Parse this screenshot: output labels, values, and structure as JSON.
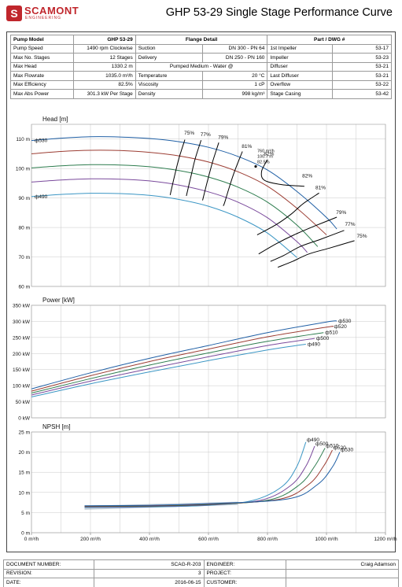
{
  "header": {
    "logo_text": "SCAMONT",
    "logo_sub": "ENGINEERING",
    "title": "GHP 53-29 Single Stage Performance Curve"
  },
  "spec_table": {
    "col1": [
      {
        "label": "Pump Model",
        "value": "GHP 53-29"
      },
      {
        "label": "Pump Speed",
        "value": "1490 rpm Clockwise"
      },
      {
        "label": "Max No. Stages",
        "value": "12 Stages"
      },
      {
        "label": "Max Head",
        "value": "1330.2 m"
      },
      {
        "label": "Max Flowrate",
        "value": "1035.0 m³/h"
      },
      {
        "label": "Max Efficiency",
        "value": "82.5%"
      },
      {
        "label": "Max Abs Power",
        "value": "301.3 kW Per Stage"
      }
    ],
    "flange_header": "Flange Detail",
    "flange": [
      {
        "label": "Suction",
        "value": "DN 300 - PN 64"
      },
      {
        "label": "Delivery",
        "value": "DN 250 - PN 160"
      }
    ],
    "medium_header": "Pumped Medium - Water @",
    "medium": [
      {
        "label": "Temperature",
        "value": "20 °C"
      },
      {
        "label": "Viscosity",
        "value": "1 cP"
      },
      {
        "label": "Density",
        "value": "998 kg/m³"
      }
    ],
    "parts_header": "Part / DWG #",
    "parts": [
      {
        "label": "1st Impeller",
        "value": "53-17"
      },
      {
        "label": "Impeller",
        "value": "53-23"
      },
      {
        "label": "Diffuser",
        "value": "53-21"
      },
      {
        "label": "Last Diffuser",
        "value": "53-21"
      },
      {
        "label": "Overflow",
        "value": "53-22"
      },
      {
        "label": "Stage Casing",
        "value": "53-42"
      }
    ]
  },
  "colors": {
    "d530": "#1f5fa5",
    "d520": "#9c3d33",
    "d510": "#2e7d4f",
    "d500": "#7a4a9c",
    "d490": "#3b96c4",
    "grid": "#c8c8c8",
    "npsh_fill": "#8aa0b4"
  },
  "chart_data": [
    {
      "type": "line",
      "title": "Head [m]",
      "ylim": [
        60,
        115
      ],
      "xlim": [
        0,
        1200
      ],
      "yticks": [
        "110 m",
        "100 m",
        "90 m",
        "80 m",
        "70 m",
        "60 m"
      ],
      "ytick_values": [
        110,
        100,
        90,
        80,
        70,
        60
      ],
      "series": [
        {
          "name": "ф530",
          "color_key": "d530",
          "x": [
            0,
            100,
            200,
            300,
            400,
            500,
            600,
            700,
            800,
            900,
            1000,
            1035
          ],
          "y": [
            109.5,
            110.3,
            110.8,
            110.7,
            110.2,
            109.1,
            107.2,
            104.1,
            99.5,
            92.2,
            83.4,
            79.5
          ]
        },
        {
          "name": "",
          "color_key": "d520",
          "x": [
            0,
            100,
            200,
            300,
            400,
            500,
            600,
            700,
            800,
            900,
            1000
          ],
          "y": [
            105.0,
            105.8,
            106.2,
            106.1,
            105.5,
            104.3,
            102.2,
            98.9,
            94.0,
            86.5,
            77.5
          ]
        },
        {
          "name": "",
          "color_key": "d510",
          "x": [
            0,
            100,
            200,
            300,
            400,
            500,
            600,
            700,
            800,
            900,
            970
          ],
          "y": [
            100.2,
            100.9,
            101.3,
            101.2,
            100.6,
            99.3,
            97.1,
            93.7,
            88.6,
            80.8,
            73.5
          ]
        },
        {
          "name": "",
          "color_key": "d500",
          "x": [
            0,
            100,
            200,
            300,
            400,
            500,
            600,
            700,
            800,
            900,
            935
          ],
          "y": [
            95.4,
            96.1,
            96.5,
            96.4,
            95.8,
            94.4,
            92.1,
            88.6,
            83.3,
            75.2,
            71.5
          ]
        },
        {
          "name": "ф490",
          "color_key": "d490",
          "x": [
            0,
            100,
            200,
            300,
            400,
            500,
            600,
            700,
            800,
            900
          ],
          "y": [
            90.5,
            91.2,
            91.6,
            91.5,
            90.9,
            89.5,
            87.2,
            83.5,
            78.1,
            69.8
          ]
        }
      ],
      "efficiency_labels": [
        {
          "text": "75%",
          "x": 535,
          "y": 111.5
        },
        {
          "text": "77%",
          "x": 590,
          "y": 111.0
        },
        {
          "text": "79%",
          "x": 650,
          "y": 110.0
        },
        {
          "text": "81%",
          "x": 730,
          "y": 107.0
        },
        {
          "text": "82%",
          "x": 805,
          "y": 104.5
        },
        {
          "text": "82%",
          "x": 935,
          "y": 97.0
        },
        {
          "text": "81%",
          "x": 980,
          "y": 93.0
        },
        {
          "text": "79%",
          "x": 1050,
          "y": 84.5
        },
        {
          "text": "77%",
          "x": 1080,
          "y": 80.5
        },
        {
          "text": "75%",
          "x": 1120,
          "y": 76.5
        }
      ],
      "efficiency_contours": [
        {
          "x": [
            520,
            500,
            485,
            470
          ],
          "y": [
            109.8,
            103.5,
            97.5,
            91.0
          ]
        },
        {
          "x": [
            575,
            555,
            540,
            525
          ],
          "y": [
            109.6,
            103.3,
            97.1,
            90.7
          ]
        },
        {
          "x": [
            635,
            615,
            597,
            580
          ],
          "y": [
            108.8,
            102.6,
            96.0,
            89.2
          ]
        },
        {
          "x": [
            715,
            690,
            670,
            655,
            650
          ],
          "y": [
            105.8,
            99.5,
            93.5,
            88.5,
            87.3
          ]
        },
        {
          "x": [
            800,
            780,
            790,
            850,
            925
          ],
          "y": [
            103.0,
            99.0,
            96.0,
            94.5,
            94.0
          ]
        },
        {
          "x": [
            975,
            920,
            880,
            830,
            765
          ],
          "y": [
            91.7,
            88.0,
            84.5,
            81.0,
            77.5
          ]
        },
        {
          "x": [
            1035,
            960,
            890,
            830,
            770
          ],
          "y": [
            83.5,
            80.5,
            77.5,
            74.5,
            71.0
          ]
        },
        {
          "x": [
            1060,
            980,
            910,
            855,
            810
          ],
          "y": [
            79.0,
            76.0,
            73.5,
            70.5,
            68.5
          ]
        },
        {
          "x": [
            1095,
            1010,
            940,
            885,
            835
          ],
          "y": [
            75.5,
            73.0,
            71.0,
            68.5,
            66.5
          ]
        }
      ],
      "bep": {
        "x": 760,
        "y": 100.7,
        "label": [
          "760 m³/h",
          "100.7 m",
          "82.5%"
        ]
      }
    },
    {
      "type": "line",
      "title": "Power [kW]",
      "ylim": [
        0,
        350
      ],
      "xlim": [
        0,
        1200
      ],
      "yticks": [
        "350 kW",
        "300 kW",
        "250 kW",
        "200 kW",
        "150 kW",
        "100 kW",
        "50 kW",
        "0 kW"
      ],
      "ytick_values": [
        350,
        300,
        250,
        200,
        150,
        100,
        50,
        0
      ],
      "series": [
        {
          "name": "ф530",
          "color_key": "d530",
          "x": [
            0,
            200,
            400,
            600,
            800,
            1000,
            1035
          ],
          "y": [
            90,
            140,
            185,
            225,
            265,
            298,
            301.3
          ]
        },
        {
          "name": "ф520",
          "color_key": "d520",
          "x": [
            0,
            200,
            400,
            600,
            800,
            1000,
            1020
          ],
          "y": [
            83,
            131,
            175,
            214,
            252,
            282,
            284
          ]
        },
        {
          "name": "ф510",
          "color_key": "d510",
          "x": [
            0,
            200,
            400,
            600,
            800,
            990
          ],
          "y": [
            77,
            122,
            164,
            202,
            238,
            265
          ]
        },
        {
          "name": "ф500",
          "color_key": "d500",
          "x": [
            0,
            200,
            400,
            600,
            800,
            960
          ],
          "y": [
            71,
            114,
            153,
            190,
            225,
            247
          ]
        },
        {
          "name": "ф490",
          "color_key": "d490",
          "x": [
            0,
            200,
            400,
            600,
            800,
            930
          ],
          "y": [
            65,
            106,
            143,
            178,
            211,
            229
          ]
        }
      ]
    },
    {
      "type": "area",
      "title": "NPSH [m]",
      "ylim": [
        0,
        25
      ],
      "xlim": [
        0,
        1200
      ],
      "yticks": [
        "25 m",
        "20 m",
        "15 m",
        "10 m",
        "5 m",
        "0 m"
      ],
      "ytick_values": [
        25,
        20,
        15,
        10,
        5,
        0
      ],
      "xticks": [
        "0 m³/h",
        "200 m³/h",
        "400 m³/h",
        "600 m³/h",
        "800 m³/h",
        "1000 m³/h",
        "1200 m³/h"
      ],
      "xtick_values": [
        0,
        200,
        400,
        600,
        800,
        1000,
        1200
      ],
      "series": [
        {
          "name": "ф490",
          "color_key": "d490",
          "x": [
            180,
            400,
            600,
            750,
            850,
            900,
            930
          ],
          "y": [
            6.3,
            6.4,
            6.8,
            8.0,
            11.5,
            16.5,
            22.5
          ]
        },
        {
          "name": "ф500",
          "color_key": "d500",
          "x": [
            180,
            400,
            600,
            780,
            880,
            930,
            960
          ],
          "y": [
            6.4,
            6.5,
            6.9,
            8.1,
            11.8,
            16.5,
            21.5
          ]
        },
        {
          "name": "ф510",
          "color_key": "d510",
          "x": [
            180,
            400,
            600,
            810,
            910,
            960,
            995
          ],
          "y": [
            6.5,
            6.6,
            7.0,
            8.2,
            12.0,
            16.5,
            21.0
          ]
        },
        {
          "name": "ф520",
          "color_key": "d520",
          "x": [
            180,
            400,
            600,
            840,
            940,
            990,
            1020
          ],
          "y": [
            6.6,
            6.7,
            7.1,
            8.3,
            12.0,
            16.5,
            20.5
          ]
        },
        {
          "name": "ф530",
          "color_key": "d530",
          "x": [
            180,
            400,
            600,
            870,
            970,
            1020,
            1045
          ],
          "y": [
            6.7,
            6.8,
            7.2,
            8.4,
            12.0,
            16.3,
            20.0
          ]
        }
      ]
    }
  ],
  "footer": {
    "rows": [
      {
        "l1": "DOCUMENT NUMBER:",
        "v1": "SCAG-R-203",
        "l2": "ENGINEER:",
        "v2": "Craig Adamson"
      },
      {
        "l1": "REVISION:",
        "v1": "3",
        "l2": "PROJECT:",
        "v2": ""
      },
      {
        "l1": "DATE:",
        "v1": "2016-06-15",
        "l2": "CUSTOMER:",
        "v2": ""
      }
    ]
  }
}
